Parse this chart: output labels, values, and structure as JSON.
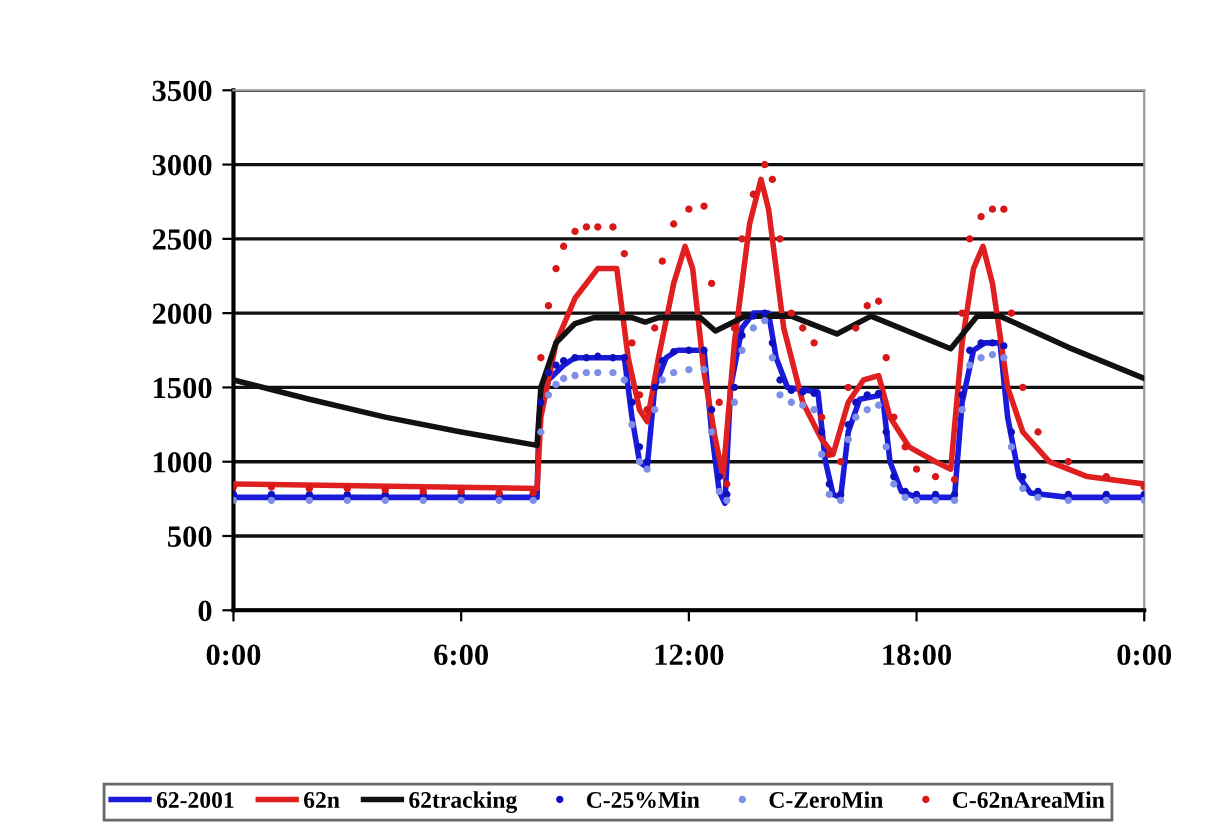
{
  "chart_data": {
    "type": "line",
    "xlim": [
      0,
      24
    ],
    "xticks": [
      {
        "value": 0,
        "label": "0:00"
      },
      {
        "value": 6,
        "label": "6:00"
      },
      {
        "value": 12,
        "label": "12:00"
      },
      {
        "value": 18,
        "label": "18:00"
      },
      {
        "value": 24,
        "label": "0:00"
      }
    ],
    "ylim": [
      0,
      3500
    ],
    "yticks": [
      0,
      500,
      1000,
      1500,
      2000,
      2500,
      3000,
      3500
    ],
    "grid": "y",
    "legend": "bottom",
    "series": [
      {
        "name": "62-2001",
        "color": "#1a1adb",
        "marker": "none",
        "x": [
          0,
          8,
          8.05,
          8.3,
          8.7,
          9,
          10.3,
          10.5,
          10.7,
          10.9,
          11.1,
          11.4,
          11.7,
          12.4,
          12.6,
          12.8,
          12.95,
          13.1,
          13.4,
          13.7,
          14.1,
          14.3,
          14.6,
          15.4,
          15.6,
          15.8,
          16,
          16.2,
          16.5,
          17.1,
          17.3,
          17.6,
          18,
          19,
          19.2,
          19.5,
          19.8,
          20.2,
          20.4,
          20.7,
          21,
          22,
          24
        ],
        "values": [
          760,
          760,
          1300,
          1550,
          1650,
          1700,
          1700,
          1300,
          1000,
          960,
          1500,
          1700,
          1750,
          1750,
          1200,
          800,
          720,
          1500,
          1900,
          2000,
          2000,
          1700,
          1500,
          1470,
          1000,
          780,
          760,
          1200,
          1420,
          1450,
          1000,
          800,
          760,
          760,
          1400,
          1750,
          1800,
          1800,
          1300,
          900,
          790,
          760,
          760
        ]
      },
      {
        "name": "62n",
        "color": "#e02020",
        "marker": "none",
        "x": [
          0,
          8,
          8.1,
          8.5,
          9,
          9.6,
          10.1,
          10.4,
          10.7,
          10.9,
          11.2,
          11.6,
          11.9,
          12.1,
          12.4,
          12.7,
          12.9,
          13.2,
          13.6,
          13.9,
          14.1,
          14.5,
          15,
          15.5,
          15.8,
          16.2,
          16.6,
          17,
          17.3,
          17.8,
          18.5,
          18.9,
          19.2,
          19.5,
          19.75,
          20,
          20.4,
          20.8,
          21.5,
          22.5,
          24
        ],
        "values": [
          850,
          820,
          1300,
          1800,
          2100,
          2300,
          2300,
          1700,
          1350,
          1270,
          1700,
          2200,
          2450,
          2300,
          1600,
          1150,
          900,
          1800,
          2600,
          2900,
          2700,
          1900,
          1400,
          1150,
          1050,
          1400,
          1550,
          1580,
          1300,
          1100,
          1000,
          950,
          1800,
          2300,
          2450,
          2200,
          1500,
          1200,
          1000,
          900,
          850
        ]
      },
      {
        "name": "62tracking",
        "color": "#111111",
        "marker": "none",
        "x": [
          0,
          2,
          4,
          6,
          8,
          8.1,
          8.5,
          9,
          9.5,
          10.5,
          10.85,
          11.2,
          12.3,
          12.7,
          13.5,
          14.7,
          15.9,
          16.8,
          18.9,
          19.6,
          20.2,
          22,
          24
        ],
        "values": [
          1550,
          1420,
          1300,
          1200,
          1110,
          1500,
          1800,
          1930,
          1970,
          1970,
          1940,
          1970,
          1970,
          1880,
          1980,
          1980,
          1860,
          1980,
          1760,
          1980,
          1980,
          1770,
          1560
        ]
      },
      {
        "name": "C-25%Min",
        "type": "scatter",
        "color": "#1010c0",
        "marker": "circle",
        "x": [
          0,
          1,
          2,
          3,
          4,
          5,
          6,
          7,
          7.9,
          8.1,
          8.3,
          8.5,
          8.7,
          9,
          9.3,
          9.6,
          10,
          10.3,
          10.5,
          10.7,
          10.9,
          11.1,
          11.3,
          11.6,
          12,
          12.4,
          12.6,
          12.8,
          13,
          13.2,
          13.4,
          13.7,
          14,
          14.2,
          14.4,
          14.7,
          15,
          15.3,
          15.5,
          15.7,
          16,
          16.2,
          16.4,
          16.7,
          17,
          17.2,
          17.4,
          17.7,
          18,
          18.5,
          19,
          19.2,
          19.4,
          19.7,
          20,
          20.3,
          20.5,
          20.8,
          21.2,
          22,
          23,
          24
        ],
        "values": [
          780,
          780,
          780,
          780,
          780,
          780,
          780,
          780,
          780,
          1400,
          1600,
          1650,
          1680,
          1700,
          1700,
          1710,
          1700,
          1700,
          1400,
          1100,
          1000,
          1500,
          1680,
          1740,
          1750,
          1750,
          1350,
          900,
          780,
          1500,
          1850,
          1980,
          2000,
          1800,
          1550,
          1480,
          1470,
          1460,
          1200,
          850,
          780,
          1250,
          1400,
          1450,
          1460,
          1200,
          900,
          800,
          780,
          780,
          780,
          1450,
          1750,
          1800,
          1800,
          1780,
          1200,
          900,
          800,
          780,
          780,
          780
        ]
      },
      {
        "name": "C-ZeroMin",
        "type": "scatter",
        "color": "#7f8fe8",
        "marker": "circle",
        "x": [
          0,
          1,
          2,
          3,
          4,
          5,
          6,
          7,
          7.9,
          8.1,
          8.3,
          8.5,
          8.7,
          9,
          9.3,
          9.6,
          10,
          10.3,
          10.5,
          10.7,
          10.9,
          11.1,
          11.3,
          11.6,
          12,
          12.4,
          12.6,
          12.8,
          13,
          13.2,
          13.4,
          13.7,
          14,
          14.2,
          14.4,
          14.7,
          15,
          15.3,
          15.5,
          15.7,
          16,
          16.2,
          16.4,
          16.7,
          17,
          17.2,
          17.4,
          17.7,
          18,
          18.5,
          19,
          19.2,
          19.4,
          19.7,
          20,
          20.3,
          20.5,
          20.8,
          21.2,
          22,
          23,
          24
        ],
        "values": [
          740,
          740,
          740,
          740,
          740,
          740,
          740,
          740,
          740,
          1200,
          1450,
          1520,
          1560,
          1580,
          1600,
          1600,
          1600,
          1550,
          1250,
          1000,
          950,
          1350,
          1550,
          1600,
          1620,
          1620,
          1200,
          800,
          740,
          1400,
          1750,
          1900,
          1950,
          1700,
          1450,
          1400,
          1380,
          1350,
          1050,
          780,
          740,
          1150,
          1300,
          1350,
          1380,
          1100,
          850,
          760,
          740,
          740,
          740,
          1350,
          1650,
          1700,
          1720,
          1700,
          1100,
          820,
          760,
          740,
          740,
          740
        ]
      },
      {
        "name": "C-62nAreaMin",
        "type": "scatter",
        "color": "#d81818",
        "marker": "circle",
        "x": [
          0,
          1,
          2,
          3,
          4,
          5,
          6,
          7,
          7.9,
          8.1,
          8.3,
          8.5,
          8.7,
          9,
          9.3,
          9.6,
          10,
          10.3,
          10.5,
          10.7,
          10.9,
          11.1,
          11.3,
          11.6,
          12,
          12.4,
          12.6,
          12.8,
          13,
          13.2,
          13.4,
          13.7,
          14,
          14.2,
          14.4,
          14.7,
          15,
          15.3,
          15.5,
          15.7,
          16,
          16.2,
          16.4,
          16.7,
          17,
          17.2,
          17.4,
          17.7,
          18,
          18.5,
          19,
          19.2,
          19.4,
          19.7,
          20,
          20.3,
          20.5,
          20.8,
          21.2,
          22,
          23,
          24
        ],
        "values": [
          830,
          830,
          820,
          820,
          810,
          800,
          800,
          790,
          790,
          1700,
          2050,
          2300,
          2450,
          2550,
          2580,
          2580,
          2580,
          2400,
          1800,
          1450,
          1350,
          1900,
          2350,
          2600,
          2700,
          2720,
          2200,
          1400,
          850,
          1900,
          2500,
          2800,
          3000,
          2900,
          2500,
          2000,
          1900,
          1800,
          1300,
          1050,
          1000,
          1500,
          1900,
          2050,
          2080,
          1700,
          1300,
          1100,
          950,
          900,
          880,
          2000,
          2500,
          2650,
          2700,
          2700,
          2000,
          1500,
          1200,
          1000,
          900,
          830
        ]
      }
    ]
  }
}
